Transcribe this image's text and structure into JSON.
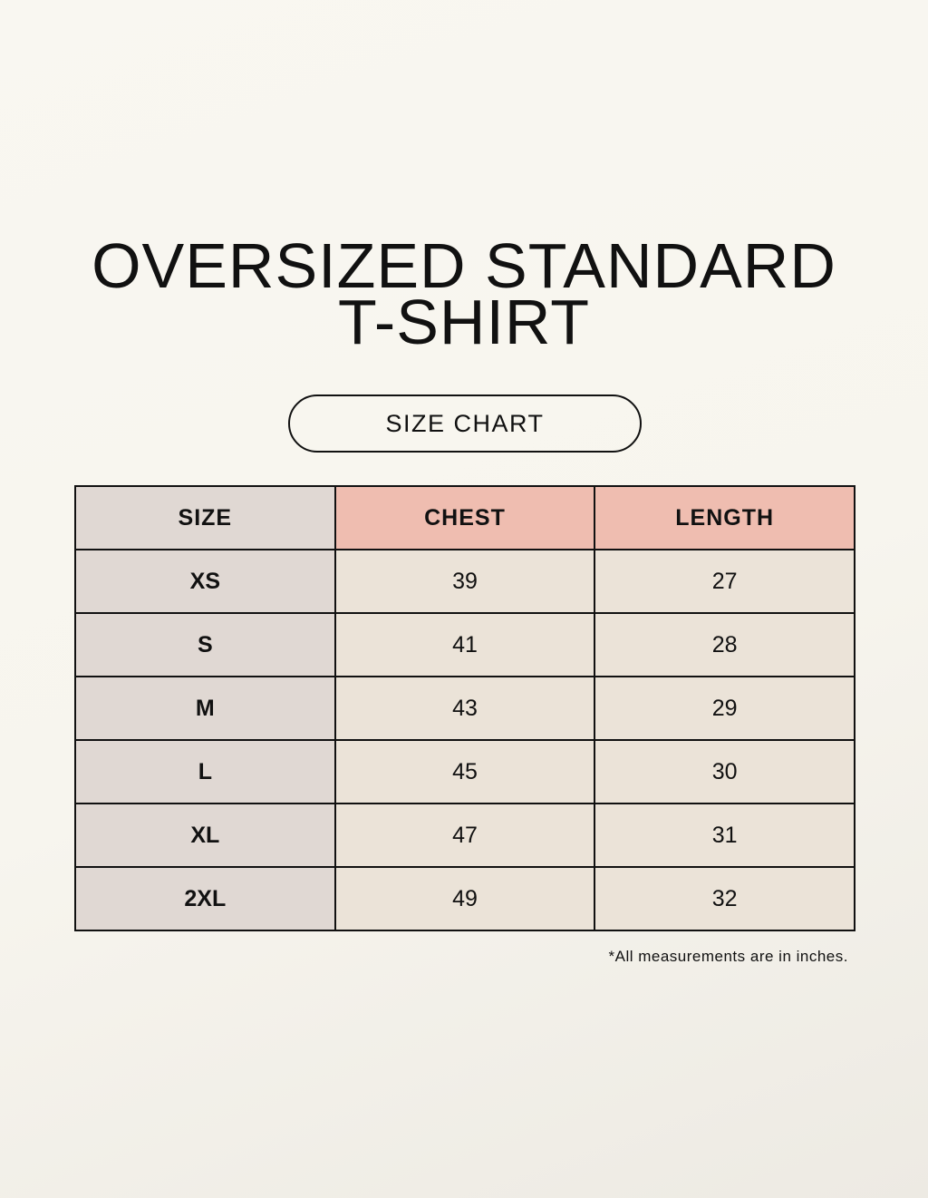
{
  "title_lines": [
    "OVERSIZED STANDARD",
    "T-SHIRT"
  ],
  "subtitle": "SIZE CHART",
  "table": {
    "headers": [
      "SIZE",
      "CHEST",
      "LENGTH"
    ],
    "rows": [
      [
        "XS",
        "39",
        "27"
      ],
      [
        "S",
        "41",
        "28"
      ],
      [
        "M",
        "43",
        "29"
      ],
      [
        "L",
        "45",
        "30"
      ],
      [
        "XL",
        "47",
        "31"
      ],
      [
        "2XL",
        "49",
        "32"
      ]
    ]
  },
  "note": "*All measurements are in inches.",
  "colors": {
    "background": "#f8f6f0",
    "header_accent": "#efbdb0",
    "size_column": "#e0d8d3",
    "cell": "#ebe3d8"
  }
}
